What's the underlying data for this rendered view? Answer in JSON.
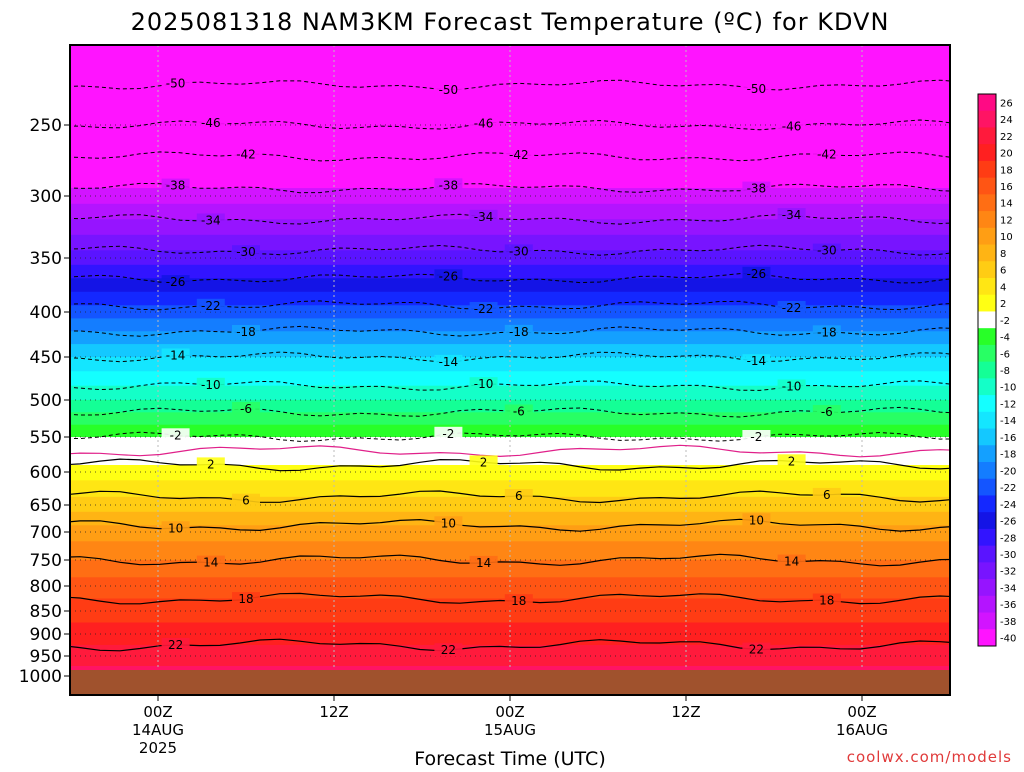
{
  "chart_data": {
    "type": "heatmap",
    "title": "2025081318 NAM3KM Forecast Temperature (ºC) for KDVN",
    "xlabel": "Forecast Time (UTC)",
    "credit": "coolwx.com/models",
    "y_axis": {
      "unit": "hPa",
      "ticks": [
        "250",
        "300",
        "350",
        "400",
        "450",
        "500",
        "550",
        "600",
        "650",
        "700",
        "750",
        "800",
        "850",
        "900",
        "950",
        "1000"
      ],
      "range": [
        200,
        1000
      ]
    },
    "x_axis": {
      "unit": "hours since 2025-08-13 18Z",
      "range": [
        0,
        60
      ],
      "ticks": [
        {
          "hour": 6,
          "line1": "00Z",
          "line2": "14AUG",
          "line3": "2025"
        },
        {
          "hour": 18,
          "line1": "12Z",
          "line2": "",
          "line3": ""
        },
        {
          "hour": 30,
          "line1": "00Z",
          "line2": "15AUG",
          "line3": ""
        },
        {
          "hour": 42,
          "line1": "12Z",
          "line2": "",
          "line3": ""
        },
        {
          "hour": 54,
          "line1": "00Z",
          "line2": "16AUG",
          "line3": ""
        }
      ]
    },
    "colorbar": {
      "levels": [
        26,
        24,
        22,
        20,
        18,
        16,
        14,
        12,
        10,
        8,
        6,
        4,
        2,
        -2,
        -4,
        -6,
        -8,
        -10,
        -12,
        -14,
        -16,
        -18,
        -20,
        -22,
        -24,
        -26,
        -28,
        -30,
        -32,
        -34,
        -36,
        -38,
        -40
      ],
      "colors": [
        "#ff0a84",
        "#ff1464",
        "#ff1a3c",
        "#ff2020",
        "#ff3c14",
        "#ff5514",
        "#ff6e14",
        "#ff8614",
        "#ff9e14",
        "#ffb414",
        "#ffcc14",
        "#ffe614",
        "#ffff14",
        "#ffffff",
        "#28ff28",
        "#28ff64",
        "#14ff96",
        "#14ffc8",
        "#14ffff",
        "#14e6ff",
        "#14c8ff",
        "#14a0ff",
        "#147dff",
        "#1455ff",
        "#1428ff",
        "#1414e6",
        "#3214ff",
        "#5a14ff",
        "#7814ff",
        "#9614ff",
        "#b414ff",
        "#d214ff",
        "#ff14ff"
      ]
    },
    "isotherm_levels_labeled": [
      -50,
      -46,
      -42,
      -38,
      -34,
      -30,
      -26,
      -22,
      -18,
      -14,
      -10,
      -6,
      -2,
      2,
      6,
      10,
      14,
      18,
      22
    ],
    "profile_levels_hpa": [
      200,
      250,
      300,
      350,
      400,
      450,
      500,
      550,
      600,
      650,
      700,
      750,
      800,
      850,
      900,
      950,
      1000
    ],
    "temperature_profile_c": [
      -54,
      -46,
      -37,
      -29,
      -21,
      -14,
      -8,
      -2,
      3,
      7,
      11,
      14,
      17,
      19,
      21,
      23,
      25
    ],
    "ground_level_hpa": 985,
    "grid": true
  }
}
